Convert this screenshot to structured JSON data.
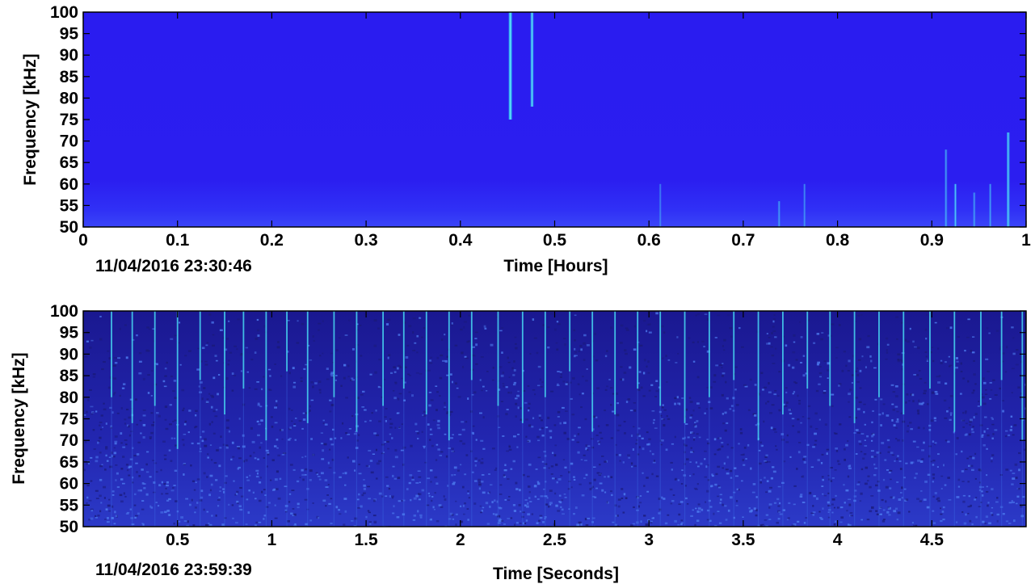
{
  "chart_data": [
    {
      "type": "heatmap",
      "title": "",
      "xlabel": "Time [Hours]",
      "ylabel": "Frequency [kHz]",
      "timestamp": "11/04/2016 23:30:46",
      "xlim": [
        0,
        1
      ],
      "ylim": [
        50,
        100
      ],
      "x_ticks": [
        "0",
        "0.1",
        "0.2",
        "0.3",
        "0.4",
        "0.5",
        "0.6",
        "0.7",
        "0.8",
        "0.9",
        "1"
      ],
      "x_tick_values": [
        0,
        0.1,
        0.2,
        0.3,
        0.4,
        0.5,
        0.6,
        0.7,
        0.8,
        0.9,
        1
      ],
      "y_ticks": [
        "50",
        "55",
        "60",
        "65",
        "70",
        "75",
        "80",
        "85",
        "90",
        "95",
        "100"
      ],
      "y_tick_values": [
        50,
        55,
        60,
        65,
        70,
        75,
        80,
        85,
        90,
        95,
        100
      ],
      "background_color": "#2a1cf0",
      "low_band_color": "#3030f6",
      "events": [
        {
          "x": 0.453,
          "fmin": 75,
          "fmax": 100,
          "strength": 0.95
        },
        {
          "x": 0.476,
          "fmin": 78,
          "fmax": 100,
          "strength": 0.8
        },
        {
          "x": 0.612,
          "fmin": 50,
          "fmax": 60,
          "strength": 0.3
        },
        {
          "x": 0.738,
          "fmin": 50,
          "fmax": 56,
          "strength": 0.4
        },
        {
          "x": 0.765,
          "fmin": 50,
          "fmax": 60,
          "strength": 0.35
        },
        {
          "x": 0.915,
          "fmin": 50,
          "fmax": 68,
          "strength": 0.45
        },
        {
          "x": 0.925,
          "fmin": 50,
          "fmax": 60,
          "strength": 0.55
        },
        {
          "x": 0.945,
          "fmin": 50,
          "fmax": 58,
          "strength": 0.4
        },
        {
          "x": 0.962,
          "fmin": 50,
          "fmax": 60,
          "strength": 0.4
        },
        {
          "x": 0.981,
          "fmin": 50,
          "fmax": 72,
          "strength": 0.7
        }
      ]
    },
    {
      "type": "heatmap",
      "title": "",
      "xlabel": "Time [Seconds]",
      "ylabel": "Frequency [kHz]",
      "timestamp": "11/04/2016 23:59:39",
      "xlim": [
        0,
        5
      ],
      "ylim": [
        50,
        100
      ],
      "x_ticks": [
        "0.5",
        "1",
        "1.5",
        "2",
        "2.5",
        "3",
        "3.5",
        "4",
        "4.5"
      ],
      "x_tick_values": [
        0.5,
        1,
        1.5,
        2,
        2.5,
        3,
        3.5,
        4,
        4.5
      ],
      "y_ticks": [
        "50",
        "55",
        "60",
        "65",
        "70",
        "75",
        "80",
        "85",
        "90",
        "95",
        "100"
      ],
      "y_tick_values": [
        50,
        55,
        60,
        65,
        70,
        75,
        80,
        85,
        90,
        95,
        100
      ],
      "background_color": "#1f1fa8",
      "speckle_color": "#3a63e6",
      "clicks_s": [
        0.15,
        0.26,
        0.38,
        0.5,
        0.62,
        0.75,
        0.85,
        0.97,
        1.08,
        1.19,
        1.33,
        1.45,
        1.59,
        1.7,
        1.82,
        1.94,
        2.06,
        2.2,
        2.33,
        2.45,
        2.58,
        2.7,
        2.82,
        2.94,
        3.06,
        3.19,
        3.32,
        3.45,
        3.58,
        3.71,
        3.84,
        3.96,
        4.09,
        4.22,
        4.35,
        4.49,
        4.62,
        4.76,
        4.87,
        4.98
      ],
      "click_fmin_khz": [
        80,
        74,
        78,
        68,
        84,
        76,
        82,
        70,
        86,
        74,
        80,
        72,
        78,
        82,
        76,
        70,
        84,
        78,
        74,
        80,
        86,
        72,
        76,
        82,
        78,
        74,
        80,
        84,
        70,
        76,
        82,
        78,
        74,
        80,
        76,
        82,
        72,
        78,
        84,
        70
      ]
    }
  ]
}
